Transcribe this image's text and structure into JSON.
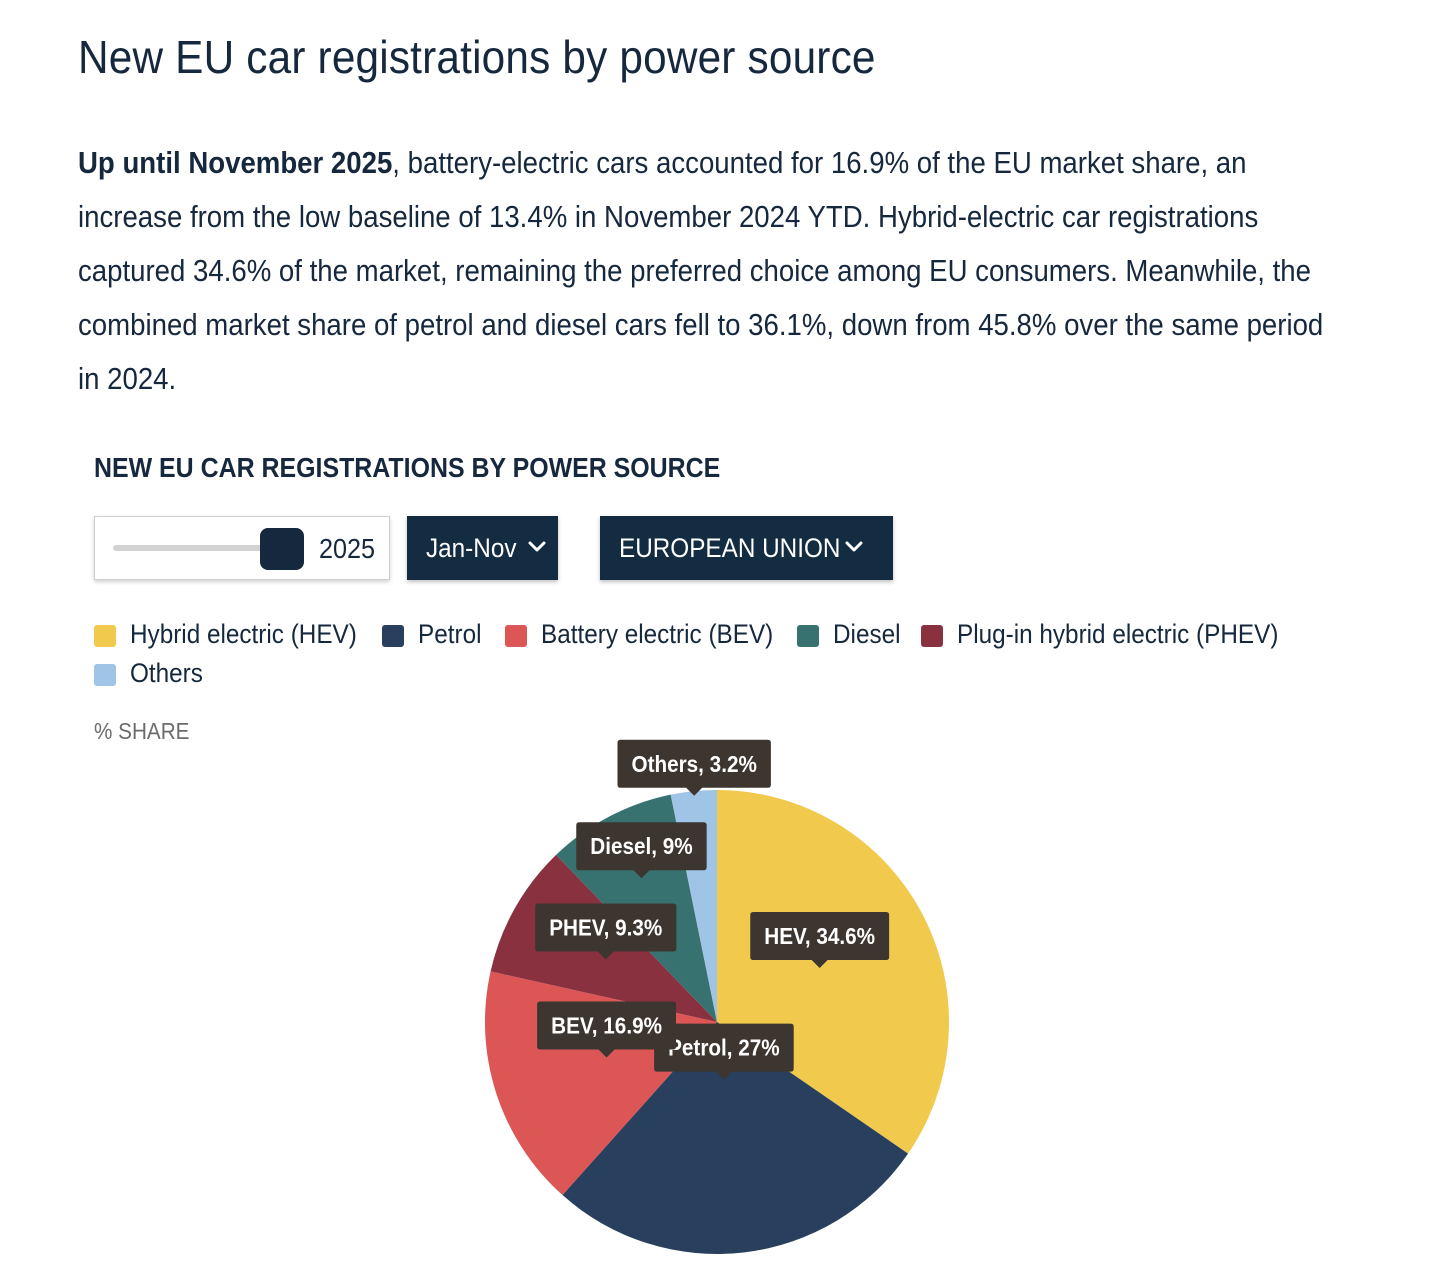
{
  "page": {
    "title": "New EU car registrations by power source",
    "intro_bold": "Up until November 2025",
    "intro_rest": ", battery-electric cars accounted for 16.9% of the EU market share, an increase from the low baseline of 13.4% in November 2024 YTD. Hybrid-electric car registrations captured 34.6% of the market, remaining the preferred choice among EU consumers. Meanwhile, the combined market share of petrol and diesel cars fell to 36.1%, down from 45.8% over the same period in 2024."
  },
  "controls": {
    "year": "2025",
    "period": "Jan-Nov",
    "region": "EUROPEAN UNION"
  },
  "icons": {
    "dropdown": "chevron-down-icon"
  },
  "chart_data": {
    "type": "pie",
    "title": "NEW EU CAR REGISTRATIONS BY POWER SOURCE",
    "unit_label": "% SHARE",
    "legend": [
      "Hybrid electric (HEV)",
      "Petrol",
      "Battery electric (BEV)",
      "Diesel",
      "Plug-in hybrid electric (PHEV)",
      "Others"
    ],
    "slices": [
      {
        "name": "HEV",
        "legend": "Hybrid electric (HEV)",
        "value": 34.6,
        "label": "HEV, 34.6%",
        "color": "#f0c94d"
      },
      {
        "name": "Petrol",
        "legend": "Petrol",
        "value": 27,
        "label": "Petrol, 27%",
        "color": "#28405d"
      },
      {
        "name": "BEV",
        "legend": "Battery electric (BEV)",
        "value": 16.9,
        "label": "BEV, 16.9%",
        "color": "#dc5656"
      },
      {
        "name": "PHEV",
        "legend": "Plug-in hybrid electric (PHEV)",
        "value": 9.3,
        "label": "PHEV, 9.3%",
        "color": "#8a3140"
      },
      {
        "name": "Diesel",
        "legend": "Diesel",
        "value": 9,
        "label": "Diesel, 9%",
        "color": "#377271"
      },
      {
        "name": "Others",
        "legend": "Others",
        "value": 3.2,
        "label": "Others, 3.2%",
        "color": "#9fc4e6"
      }
    ],
    "tooltip_color": "#3d3530"
  }
}
